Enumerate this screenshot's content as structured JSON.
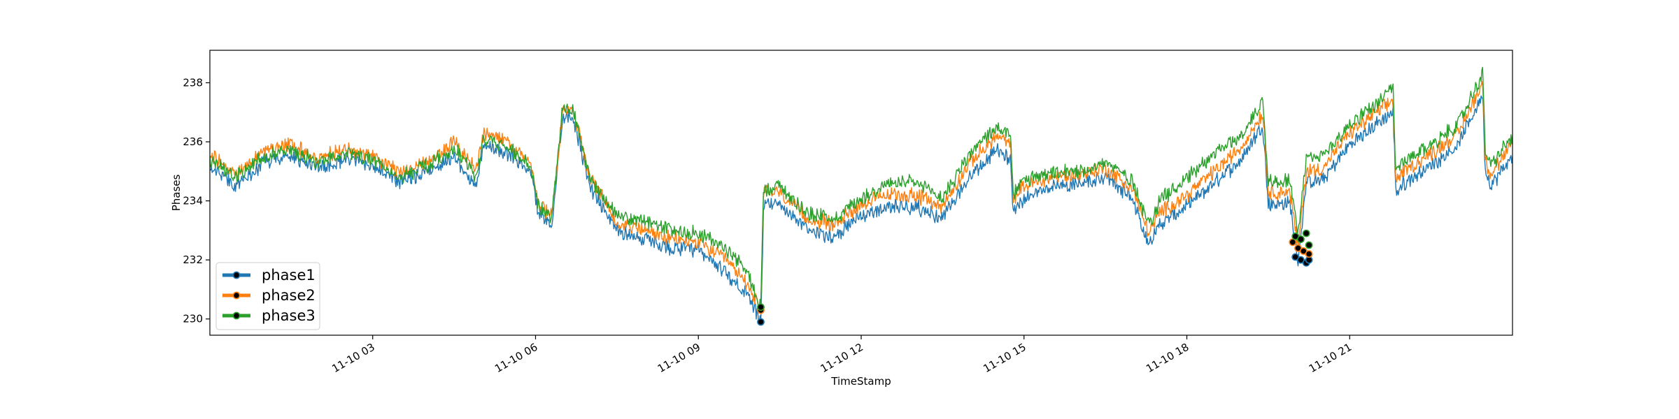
{
  "chart_data": {
    "type": "line",
    "title": "",
    "xlabel": "TimeStamp",
    "ylabel": "Phases",
    "x_unit": "hours (2023-11-10)",
    "xlim": [
      0,
      24
    ],
    "ylim": [
      229.45,
      239.1
    ],
    "xticks": [
      {
        "value": 3,
        "label": "11-10 03"
      },
      {
        "value": 6,
        "label": "11-10 06"
      },
      {
        "value": 9,
        "label": "11-10 09"
      },
      {
        "value": 12,
        "label": "11-10 12"
      },
      {
        "value": 15,
        "label": "11-10 15"
      },
      {
        "value": 18,
        "label": "11-10 18"
      },
      {
        "value": 21,
        "label": "11-10 21"
      }
    ],
    "yticks": [
      {
        "value": 230,
        "label": "230"
      },
      {
        "value": 232,
        "label": "232"
      },
      {
        "value": 234,
        "label": "234"
      },
      {
        "value": 236,
        "label": "236"
      },
      {
        "value": 238,
        "label": "238"
      }
    ],
    "grid": false,
    "legend": "bottom-left",
    "series": [
      {
        "name": "phase1",
        "color": "#1f77b4",
        "x": [
          0,
          0.5,
          1,
          1.5,
          2,
          2.5,
          3,
          3.5,
          4,
          4.5,
          4.9,
          5.05,
          5.5,
          5.9,
          6.05,
          6.3,
          6.5,
          6.7,
          7,
          7.5,
          8,
          8.5,
          9,
          9.5,
          9.9,
          10.15,
          10.2,
          10.5,
          11,
          11.5,
          12,
          12.5,
          13,
          13.5,
          14,
          14.5,
          14.75,
          14.8,
          15,
          15.5,
          16,
          16.5,
          17,
          17.3,
          17.5,
          18,
          18.5,
          19,
          19.4,
          19.5,
          19.9,
          20.05,
          20.2,
          20.5,
          21,
          21.5,
          21.8,
          21.85,
          22,
          22.5,
          23,
          23.45,
          23.5,
          23.6,
          24
        ],
        "y": [
          235.2,
          234.5,
          235.3,
          235.5,
          235.1,
          235.4,
          235.2,
          234.6,
          235.0,
          235.5,
          234.5,
          235.9,
          235.6,
          235.0,
          233.6,
          233.2,
          236.9,
          236.8,
          234.5,
          233.0,
          232.7,
          232.4,
          232.3,
          231.6,
          230.8,
          229.9,
          233.8,
          233.9,
          233.0,
          232.8,
          233.5,
          233.8,
          233.8,
          233.4,
          234.8,
          235.7,
          235.4,
          233.7,
          234.1,
          234.5,
          234.6,
          234.8,
          234.1,
          232.5,
          233.2,
          233.8,
          234.6,
          235.4,
          236.6,
          233.9,
          233.9,
          232.0,
          234.6,
          234.7,
          235.9,
          236.6,
          237.0,
          234.3,
          234.6,
          235.2,
          235.9,
          237.6,
          235.0,
          234.5,
          235.5
        ],
        "markers": [
          {
            "x": 10.15,
            "y": 229.9
          },
          {
            "x": 20.0,
            "y": 232.1
          },
          {
            "x": 20.1,
            "y": 232.0
          },
          {
            "x": 20.2,
            "y": 231.9
          },
          {
            "x": 20.25,
            "y": 232.0
          }
        ]
      },
      {
        "name": "phase2",
        "color": "#ff7f0e",
        "x": [
          0,
          0.5,
          1,
          1.5,
          2,
          2.5,
          3,
          3.5,
          4,
          4.5,
          4.9,
          5.05,
          5.5,
          5.9,
          6.05,
          6.3,
          6.5,
          6.7,
          7,
          7.5,
          8,
          8.5,
          9,
          9.5,
          9.9,
          10.15,
          10.2,
          10.5,
          11,
          11.5,
          12,
          12.5,
          13,
          13.5,
          14,
          14.5,
          14.75,
          14.8,
          15,
          15.5,
          16,
          16.5,
          17,
          17.3,
          17.5,
          18,
          18.5,
          19,
          19.4,
          19.5,
          19.9,
          20.05,
          20.2,
          20.5,
          21,
          21.5,
          21.8,
          21.85,
          22,
          22.5,
          23,
          23.45,
          23.5,
          23.6,
          24
        ],
        "y": [
          235.6,
          234.9,
          235.7,
          235.9,
          235.4,
          235.8,
          235.5,
          235.0,
          235.3,
          236.0,
          235.0,
          236.3,
          236.0,
          235.3,
          233.9,
          233.5,
          237.1,
          237.0,
          234.8,
          233.3,
          233.0,
          232.7,
          232.6,
          232.0,
          231.2,
          230.3,
          234.3,
          234.3,
          233.4,
          233.2,
          233.9,
          234.2,
          234.2,
          233.8,
          235.3,
          236.2,
          235.9,
          234.1,
          234.5,
          234.8,
          234.9,
          235.1,
          234.4,
          232.9,
          233.6,
          234.2,
          235.0,
          235.8,
          237.0,
          234.3,
          234.3,
          232.4,
          235.0,
          235.1,
          236.3,
          237.0,
          237.4,
          234.7,
          235.0,
          235.6,
          236.3,
          238.0,
          235.4,
          234.9,
          235.9
        ],
        "markers": [
          {
            "x": 10.15,
            "y": 230.3
          },
          {
            "x": 19.95,
            "y": 232.6
          },
          {
            "x": 20.05,
            "y": 232.4
          },
          {
            "x": 20.15,
            "y": 232.3
          },
          {
            "x": 20.25,
            "y": 232.2
          }
        ]
      },
      {
        "name": "phase3",
        "color": "#2ca02c",
        "x": [
          0,
          0.5,
          1,
          1.5,
          2,
          2.5,
          3,
          3.5,
          4,
          4.5,
          4.9,
          5.05,
          5.5,
          5.9,
          6.05,
          6.3,
          6.5,
          6.7,
          7,
          7.5,
          8,
          8.5,
          9,
          9.5,
          9.9,
          10.15,
          10.2,
          10.5,
          11,
          11.5,
          12,
          12.5,
          13,
          13.5,
          14,
          14.5,
          14.75,
          14.8,
          15,
          15.5,
          16,
          16.5,
          17,
          17.3,
          17.5,
          18,
          18.5,
          19,
          19.4,
          19.5,
          19.9,
          20.05,
          20.2,
          20.5,
          21,
          21.5,
          21.8,
          21.85,
          22,
          22.5,
          23,
          23.45,
          23.5,
          23.6,
          24
        ],
        "y": [
          235.4,
          234.8,
          235.5,
          235.7,
          235.3,
          235.6,
          235.4,
          234.8,
          235.2,
          235.8,
          234.8,
          236.1,
          235.8,
          235.2,
          233.8,
          233.4,
          237.2,
          237.1,
          234.8,
          233.5,
          233.3,
          233.0,
          232.9,
          232.4,
          231.6,
          230.4,
          234.4,
          234.5,
          233.6,
          233.4,
          234.1,
          234.6,
          234.6,
          234.1,
          235.6,
          236.5,
          236.2,
          234.2,
          234.7,
          234.9,
          235.0,
          235.3,
          234.7,
          233.2,
          234.0,
          234.8,
          235.6,
          236.2,
          237.4,
          234.7,
          234.7,
          232.9,
          235.4,
          235.5,
          236.6,
          237.3,
          237.8,
          235.0,
          235.3,
          235.9,
          236.6,
          238.3,
          235.7,
          235.2,
          236.2
        ],
        "markers": [
          {
            "x": 10.15,
            "y": 230.4
          },
          {
            "x": 20.0,
            "y": 232.8
          },
          {
            "x": 20.1,
            "y": 232.7
          },
          {
            "x": 20.2,
            "y": 232.9
          },
          {
            "x": 20.25,
            "y": 232.5
          }
        ]
      }
    ]
  }
}
